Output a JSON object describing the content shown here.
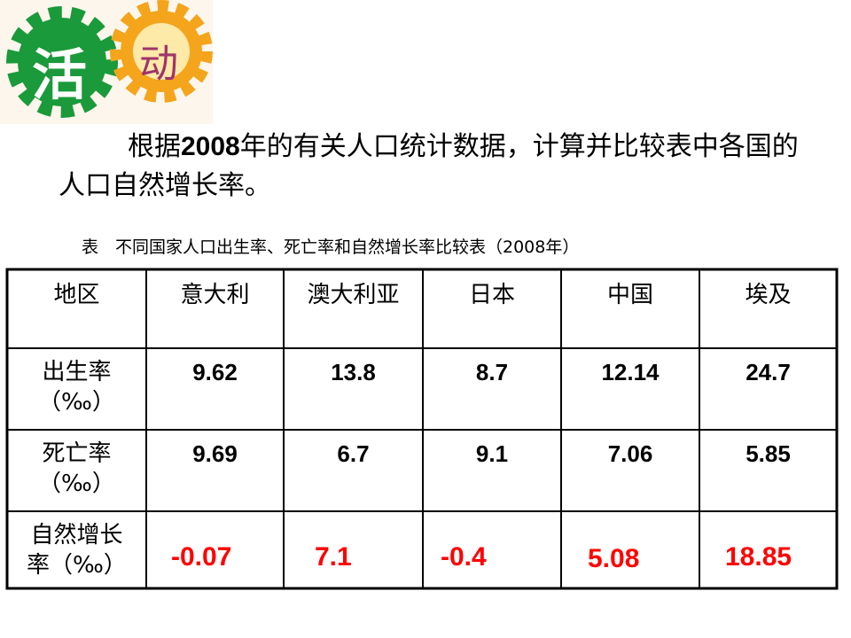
{
  "badge": {
    "left": "活",
    "right": "动"
  },
  "paragraph": {
    "before": "根据",
    "bold": "2008",
    "after": "年的有关人口统计数据，计算并比较表中各国的人口自然增长率。"
  },
  "table": {
    "caption": "表　不同国家人口出生率、死亡率和自然增长率比较表（2008年）",
    "header": [
      "地区",
      "意大利",
      "澳大利亚",
      "日本",
      "中国",
      "埃及"
    ],
    "rows": [
      {
        "label": [
          "出生率",
          "（‰）"
        ],
        "values": [
          "9.62",
          "13.8",
          "8.7",
          "12.14",
          "24.7"
        ]
      },
      {
        "label": [
          "死亡率",
          "（‰）"
        ],
        "values": [
          "9.69",
          "6.7",
          "9.1",
          "7.06",
          "5.85"
        ]
      },
      {
        "label": [
          "自然增长",
          "率（‰）"
        ],
        "values": [
          "-0.07",
          "7.1",
          "-0.4",
          "5.08",
          "18.85"
        ]
      }
    ]
  }
}
